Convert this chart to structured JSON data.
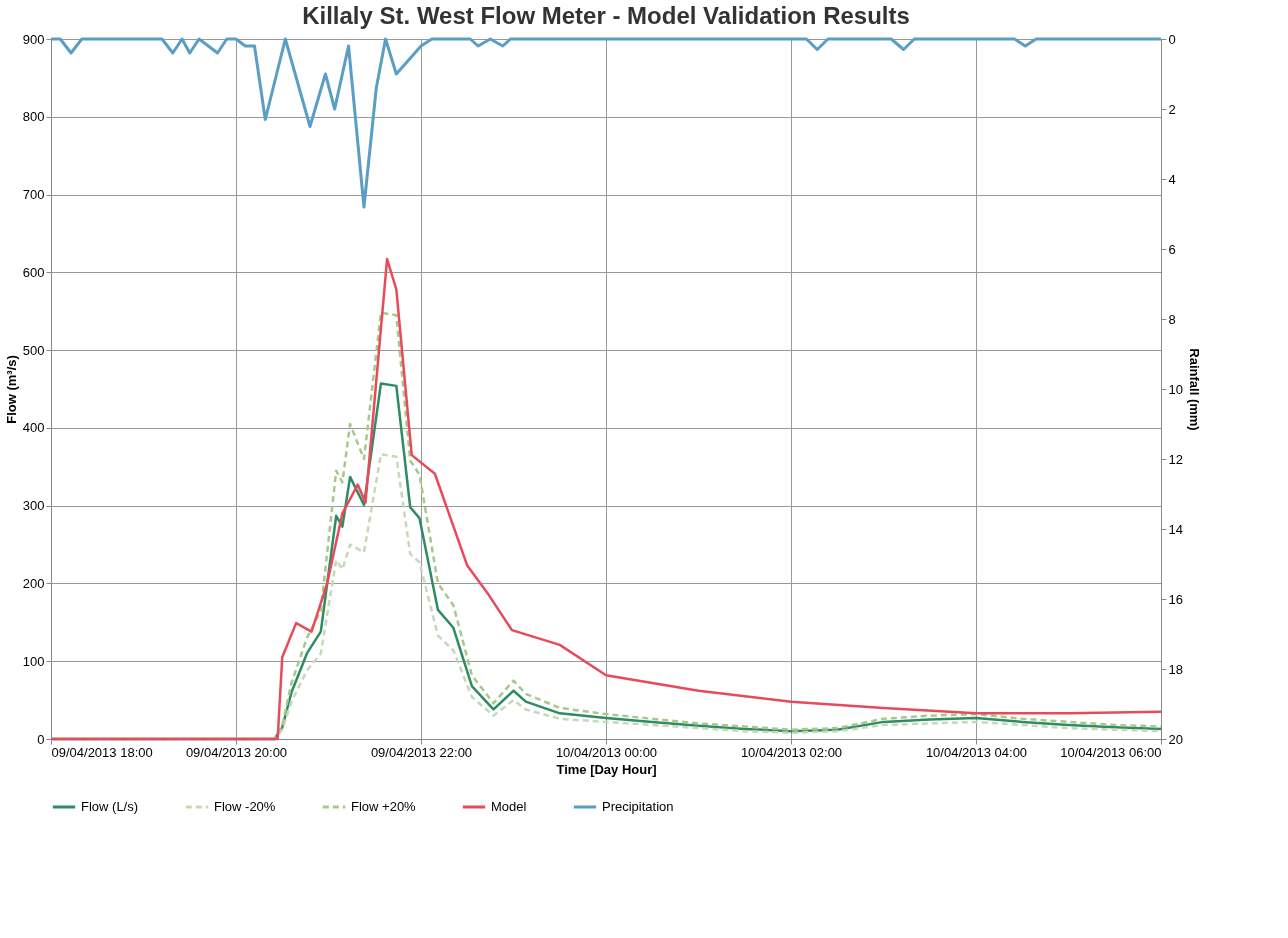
{
  "chart_data": {
    "type": "line",
    "title": "Killaly St. West Flow Meter - Model Validation Results",
    "xlabel": "Time [Day Hour]",
    "ylabel": "Flow (m³/s)",
    "y2label": "Rainfall (mm)",
    "xlim": [
      "2013-04-09T18:00",
      "2013-04-10T06:00"
    ],
    "xticks": [
      {
        "value": "2013-04-09T18:00",
        "label": "09/04/2013 18:00"
      },
      {
        "value": "2013-04-09T20:00",
        "label": "09/04/2013 20:00"
      },
      {
        "value": "2013-04-09T22:00",
        "label": "09/04/2013 22:00"
      },
      {
        "value": "2013-04-10T00:00",
        "label": "10/04/2013 00:00"
      },
      {
        "value": "2013-04-10T02:00",
        "label": "10/04/2013 02:00"
      },
      {
        "value": "2013-04-10T04:00",
        "label": "10/04/2013 04:00"
      },
      {
        "value": "2013-04-10T06:00",
        "label": "10/04/2013 06:00"
      }
    ],
    "ylim": [
      0,
      900
    ],
    "yticks": [
      0,
      100,
      200,
      300,
      400,
      500,
      600,
      700,
      800,
      900
    ],
    "y2lim": [
      20,
      0
    ],
    "y2ticks": [
      0,
      2,
      4,
      6,
      8,
      10,
      12,
      14,
      16,
      18,
      20
    ],
    "grid": true,
    "legend": "bottom",
    "line_style": "solid",
    "marker": "none",
    "x": [
      "2013-04-09T18:00",
      "2013-04-09T20:00",
      "2013-04-09T20:25",
      "2013-04-09T20:30",
      "2013-04-09T20:36",
      "2013-04-09T20:46",
      "2013-04-09T20:55",
      "2013-04-09T21:05",
      "2013-04-09T21:09",
      "2013-04-09T21:14",
      "2013-04-09T21:23",
      "2013-04-09T21:34",
      "2013-04-09T21:44",
      "2013-04-09T21:53",
      "2013-04-09T21:59",
      "2013-04-09T22:11",
      "2013-04-09T22:21",
      "2013-04-09T22:33",
      "2013-04-09T22:47",
      "2013-04-09T23:00",
      "2013-04-09T23:08",
      "2013-04-09T23:30",
      "2013-04-10T00:00",
      "2013-04-10T00:30",
      "2013-04-10T01:00",
      "2013-04-10T01:30",
      "2013-04-10T02:00",
      "2013-04-10T02:30",
      "2013-04-10T03:00",
      "2013-04-10T03:30",
      "2013-04-10T04:00",
      "2013-04-10T04:30",
      "2013-04-10T05:00",
      "2013-04-10T05:30",
      "2013-04-10T06:00"
    ],
    "series": [
      {
        "name": "Flow (L/s)",
        "color": "#2e8b62",
        "values": [
          0,
          0,
          0,
          15,
          60,
          110,
          138,
          287,
          273,
          337,
          301,
          457,
          454,
          298,
          284,
          166,
          143,
          68,
          38,
          62,
          48,
          33,
          27,
          22,
          17,
          13,
          10,
          12,
          22,
          25,
          27,
          22,
          18,
          15,
          13
        ]
      },
      {
        "name": "Flow -20%",
        "color": "#c5d9b8",
        "line_style": "dashed",
        "values": [
          0,
          0,
          0,
          12,
          48,
          88,
          110,
          230,
          218,
          250,
          240,
          366,
          363,
          238,
          227,
          133,
          114,
          54,
          30,
          50,
          38,
          26,
          22,
          18,
          14,
          10,
          8,
          10,
          18,
          20,
          22,
          18,
          14,
          12,
          10
        ]
      },
      {
        "name": "Flow +20%",
        "color": "#a6c98a",
        "line_style": "dashed",
        "values": [
          0,
          0,
          0,
          18,
          72,
          130,
          165,
          345,
          330,
          405,
          360,
          548,
          545,
          358,
          340,
          200,
          172,
          82,
          46,
          75,
          58,
          40,
          32,
          26,
          20,
          16,
          12,
          14,
          26,
          30,
          32,
          26,
          22,
          18,
          16
        ]
      },
      {
        "name": "Model",
        "color": "#e84a5a",
        "x": [
          "2013-04-09T18:00",
          "2013-04-09T20:27",
          "2013-04-09T20:30",
          "2013-04-09T20:39",
          "2013-04-09T20:49",
          "2013-04-09T20:59",
          "2013-04-09T21:09",
          "2013-04-09T21:19",
          "2013-04-09T21:24",
          "2013-04-09T21:38",
          "2013-04-09T21:44",
          "2013-04-09T21:54",
          "2013-04-09T22:09",
          "2013-04-09T22:30",
          "2013-04-09T22:44",
          "2013-04-09T22:59",
          "2013-04-09T23:30",
          "2013-04-10T00:00",
          "2013-04-10T01:00",
          "2013-04-10T02:00",
          "2013-04-10T03:00",
          "2013-04-10T04:00",
          "2013-04-10T05:00",
          "2013-04-10T06:00"
        ],
        "values": [
          0,
          0,
          105,
          149,
          138,
          199,
          290,
          327,
          304,
          617,
          578,
          365,
          341,
          223,
          185,
          140,
          121,
          82,
          62,
          48,
          40,
          33,
          33,
          35
        ]
      },
      {
        "name": "Precipitation",
        "color": "#5a9ec4",
        "axis": "y2",
        "x": [
          "2013-04-09T18:00",
          "2013-04-09T18:06",
          "2013-04-09T18:13",
          "2013-04-09T18:20",
          "2013-04-09T19:12",
          "2013-04-09T19:19",
          "2013-04-09T19:25",
          "2013-04-09T19:30",
          "2013-04-09T19:36",
          "2013-04-09T19:48",
          "2013-04-09T19:54",
          "2013-04-09T20:00",
          "2013-04-09T20:06",
          "2013-04-09T20:12",
          "2013-04-09T20:19",
          "2013-04-09T20:32",
          "2013-04-09T20:48",
          "2013-04-09T20:58",
          "2013-04-09T21:04",
          "2013-04-09T21:13",
          "2013-04-09T21:23",
          "2013-04-09T21:31",
          "2013-04-09T21:37",
          "2013-04-09T21:44",
          "2013-04-09T22:00",
          "2013-04-09T22:07",
          "2013-04-09T22:32",
          "2013-04-09T22:37",
          "2013-04-09T22:45",
          "2013-04-09T22:53",
          "2013-04-09T22:58",
          "2013-04-10T02:10",
          "2013-04-10T02:17",
          "2013-04-10T02:24",
          "2013-04-10T03:05",
          "2013-04-10T03:13",
          "2013-04-10T03:20",
          "2013-04-10T04:25",
          "2013-04-10T04:32",
          "2013-04-10T04:39",
          "2013-04-10T06:00"
        ],
        "values": [
          0,
          0,
          0.4,
          0,
          0,
          0.4,
          0,
          0.4,
          0,
          0.4,
          0,
          0,
          0.2,
          0.2,
          2.3,
          0,
          2.5,
          1.0,
          2.0,
          0.2,
          4.8,
          1.4,
          0,
          1.0,
          0.2,
          0,
          0,
          0.2,
          0,
          0.2,
          0,
          0,
          0.3,
          0,
          0,
          0.3,
          0,
          0,
          0.2,
          0,
          0
        ]
      }
    ]
  }
}
